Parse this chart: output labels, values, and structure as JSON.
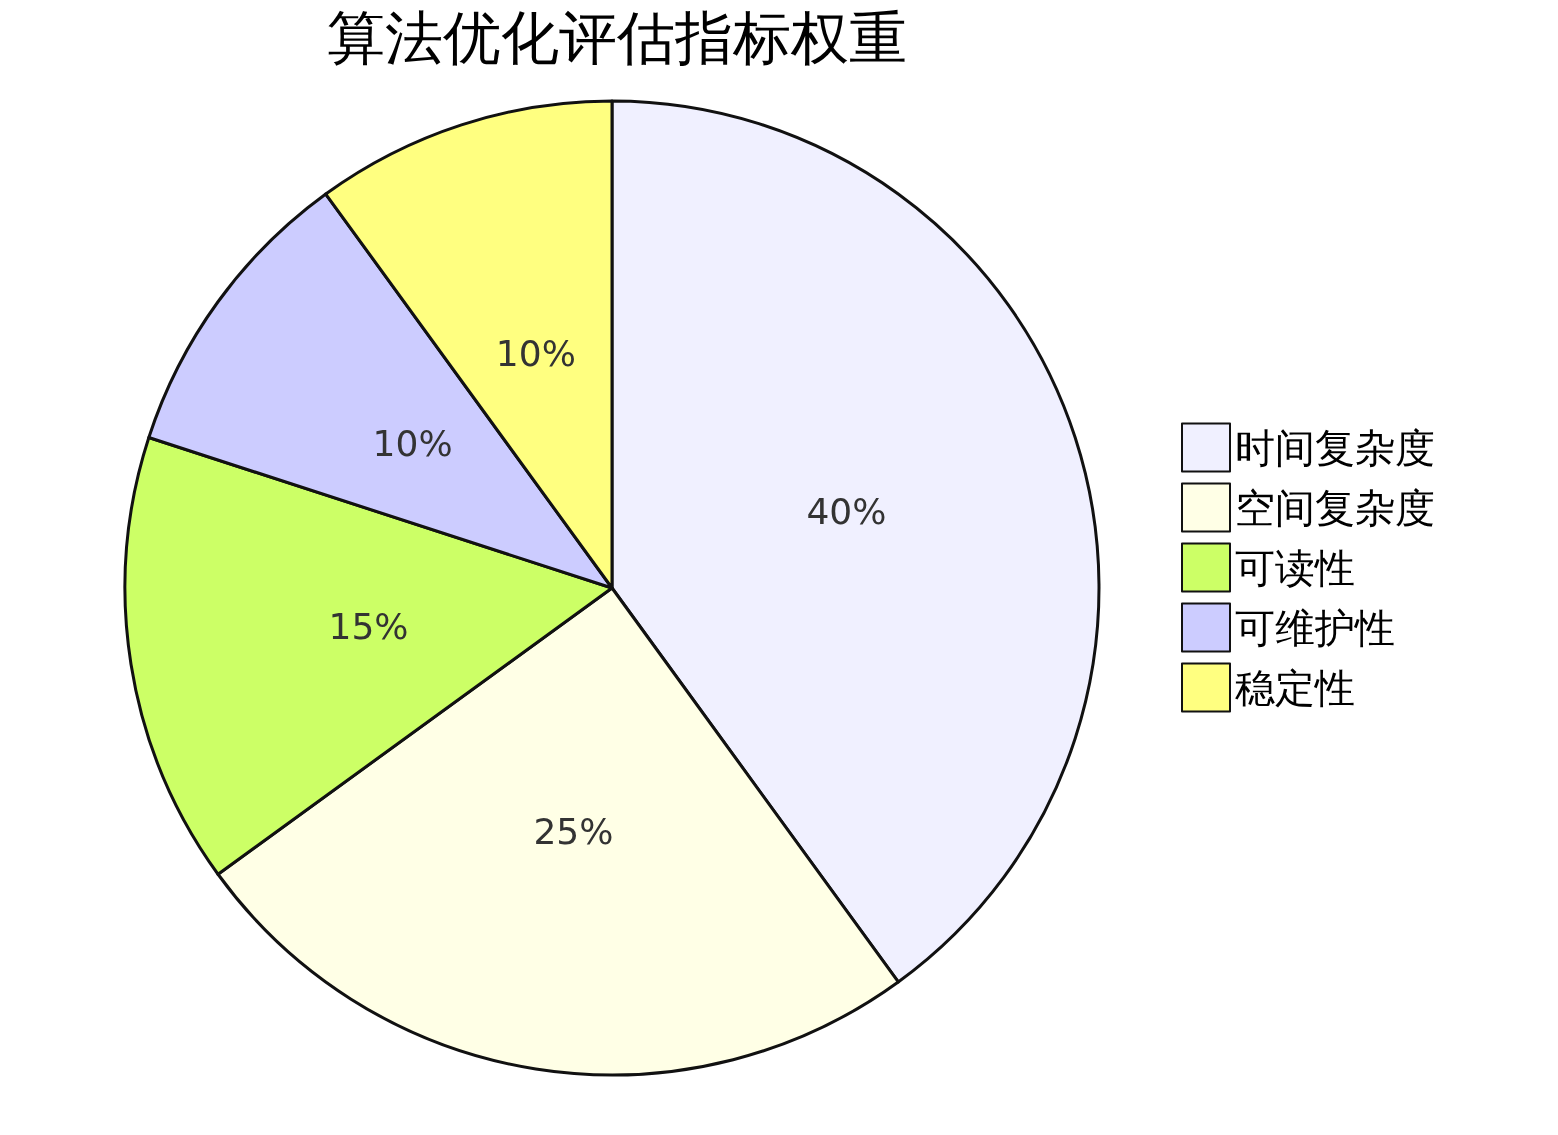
{
  "chart_data": {
    "type": "pie",
    "title": "算法优化评估指标权重",
    "categories": [
      "时间复杂度",
      "空间复杂度",
      "可读性",
      "可维护性",
      "稳定性"
    ],
    "values": [
      40,
      25,
      15,
      10,
      10
    ],
    "colors": [
      "#f0f0ff",
      "#ffffe6",
      "#ccff66",
      "#ccccff",
      "#ffff80"
    ],
    "value_labels": [
      "40%",
      "25%",
      "15%",
      "10%",
      "10%"
    ],
    "legend": "right"
  }
}
